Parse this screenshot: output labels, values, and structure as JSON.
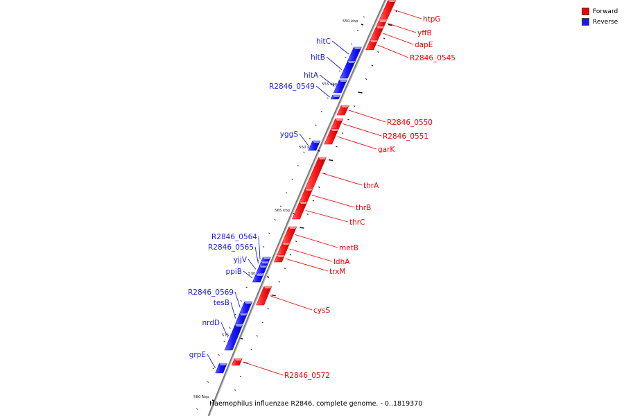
{
  "colors": {
    "forward": "#ee0000",
    "reverse": "#1a1aee",
    "backbone": "#888888"
  },
  "legend": [
    {
      "label": "Forward",
      "color": "#ee0000"
    },
    {
      "label": "Reverse",
      "color": "#1a1aee"
    }
  ],
  "caption": "Haemophilus influenzae R2846, complete genome. - 0..1819370",
  "kbp_marks": [
    {
      "label": "550 kbp"
    },
    {
      "label": "555 kbp"
    },
    {
      "label": "560 kbp"
    },
    {
      "label": "565 kbp"
    },
    {
      "label": "570 kbp"
    },
    {
      "label": "575 kbp"
    },
    {
      "label": "580 kbp"
    }
  ],
  "genes": [
    {
      "name": "htpG",
      "strand": "forward"
    },
    {
      "name": "yffB",
      "strand": "forward"
    },
    {
      "name": "dapE",
      "strand": "forward"
    },
    {
      "name": "R2846_0545",
      "strand": "forward"
    },
    {
      "name": "hitC",
      "strand": "reverse"
    },
    {
      "name": "hitB",
      "strand": "reverse"
    },
    {
      "name": "hitA",
      "strand": "reverse"
    },
    {
      "name": "R2846_0549",
      "strand": "reverse"
    },
    {
      "name": "R2846_0550",
      "strand": "forward"
    },
    {
      "name": "R2846_0551",
      "strand": "forward"
    },
    {
      "name": "garK",
      "strand": "forward"
    },
    {
      "name": "yggS",
      "strand": "reverse"
    },
    {
      "name": "thrA",
      "strand": "forward"
    },
    {
      "name": "thrB",
      "strand": "forward"
    },
    {
      "name": "thrC",
      "strand": "forward"
    },
    {
      "name": "metB",
      "strand": "forward"
    },
    {
      "name": "ldhA",
      "strand": "forward"
    },
    {
      "name": "trxM",
      "strand": "forward"
    },
    {
      "name": "R2846_0564",
      "strand": "reverse"
    },
    {
      "name": "R2846_0565",
      "strand": "reverse"
    },
    {
      "name": "yjjV",
      "strand": "reverse"
    },
    {
      "name": "ppiB",
      "strand": "reverse"
    },
    {
      "name": "R2846_0569",
      "strand": "reverse"
    },
    {
      "name": "tesB",
      "strand": "reverse"
    },
    {
      "name": "nrdD",
      "strand": "reverse"
    },
    {
      "name": "cysS",
      "strand": "forward"
    },
    {
      "name": "grpE",
      "strand": "reverse"
    },
    {
      "name": "R2846_0572",
      "strand": "forward"
    }
  ]
}
